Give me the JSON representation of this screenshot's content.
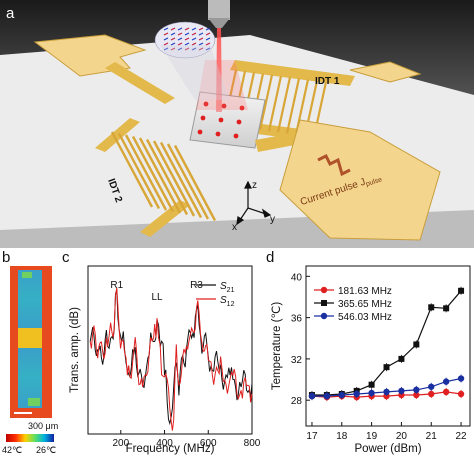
{
  "panels": {
    "a": "a",
    "b": "b",
    "c": "c",
    "d": "d"
  },
  "schematic": {
    "idt1_label": "IDT 1",
    "idt2_label": "IDT 2",
    "current_pulse_label": "Current pulse J",
    "current_pulse_sub": "pulse",
    "axis_x": "x",
    "axis_y": "y",
    "axis_z": "z"
  },
  "thermal_map": {
    "scalebar": "300 μm",
    "cbar_min": "42℃",
    "cbar_max": "26℃"
  },
  "colors": {
    "gold": "#e3b94c",
    "pad": "#f3d58e",
    "black_series": "#111111",
    "red_series": "#e02020",
    "blue_series": "#1a2fa0"
  },
  "chart_data": [
    {
      "type": "line",
      "panel": "c",
      "xlabel": "Frequency (MHz)",
      "ylabel": "Trans. amp. (dB)",
      "xlim": [
        50,
        800
      ],
      "xticks": [
        200,
        400,
        600,
        800
      ],
      "annotations": [
        "R1",
        "LL",
        "R3"
      ],
      "annotation_x": [
        181.63,
        365.65,
        546.03
      ],
      "series": [
        {
          "name": "S21",
          "name_sub": "21",
          "color": "#111111",
          "x": [
            60,
            100,
            140,
            160,
            170,
            181.63,
            192,
            205,
            230,
            260,
            300,
            330,
            350,
            365.65,
            380,
            400,
            430,
            460,
            500,
            530,
            546.03,
            565,
            600,
            650,
            700,
            750,
            800
          ],
          "y": [
            0.55,
            0.5,
            0.52,
            0.58,
            0.62,
            0.86,
            0.62,
            0.55,
            0.38,
            0.48,
            0.3,
            0.47,
            0.55,
            0.68,
            0.52,
            0.35,
            0.1,
            0.36,
            0.5,
            0.6,
            0.74,
            0.58,
            0.46,
            0.38,
            0.35,
            0.28,
            0.3
          ]
        },
        {
          "name": "S12",
          "name_sub": "12",
          "color": "#e02020",
          "x": [
            60,
            100,
            140,
            160,
            170,
            181.63,
            192,
            205,
            230,
            260,
            300,
            330,
            350,
            365.65,
            380,
            400,
            430,
            460,
            500,
            530,
            546.03,
            565,
            600,
            650,
            700,
            750,
            800
          ],
          "y": [
            0.55,
            0.52,
            0.52,
            0.6,
            0.63,
            0.87,
            0.63,
            0.56,
            0.35,
            0.5,
            0.28,
            0.48,
            0.57,
            0.69,
            0.53,
            0.34,
            0.08,
            0.34,
            0.52,
            0.61,
            0.75,
            0.59,
            0.44,
            0.36,
            0.33,
            0.26,
            0.24
          ]
        }
      ]
    },
    {
      "type": "line",
      "panel": "d",
      "xlabel": "Power (dBm)",
      "ylabel": "Temperature (℃)",
      "xlim": [
        16.8,
        22.3
      ],
      "ylim": [
        25.5,
        41
      ],
      "xticks": [
        17,
        18,
        19,
        20,
        21,
        22
      ],
      "yticks": [
        28,
        32,
        36,
        40
      ],
      "series": [
        {
          "name": "181.63 MHz",
          "color": "#e02020",
          "marker": "circle",
          "x": [
            17,
            17.5,
            18,
            18.5,
            19,
            19.5,
            20,
            20.5,
            21,
            21.5,
            22
          ],
          "y": [
            28.4,
            28.3,
            28.4,
            28.3,
            28.4,
            28.4,
            28.5,
            28.5,
            28.6,
            28.8,
            28.6
          ]
        },
        {
          "name": "365.65 MHz",
          "color": "#111111",
          "marker": "square",
          "x": [
            17,
            17.5,
            18,
            18.5,
            19,
            19.5,
            20,
            20.5,
            21,
            21.5,
            22
          ],
          "y": [
            28.5,
            28.5,
            28.6,
            28.9,
            29.5,
            31.2,
            32.0,
            33.4,
            37.0,
            36.9,
            38.6
          ]
        },
        {
          "name": "546.03 MHz",
          "color": "#1a2fa0",
          "marker": "circle",
          "x": [
            17,
            17.5,
            18,
            18.5,
            19,
            19.5,
            20,
            20.5,
            21,
            21.5,
            22
          ],
          "y": [
            28.4,
            28.4,
            28.5,
            28.6,
            28.7,
            28.8,
            28.9,
            29.0,
            29.3,
            29.8,
            30.1
          ]
        }
      ]
    }
  ]
}
